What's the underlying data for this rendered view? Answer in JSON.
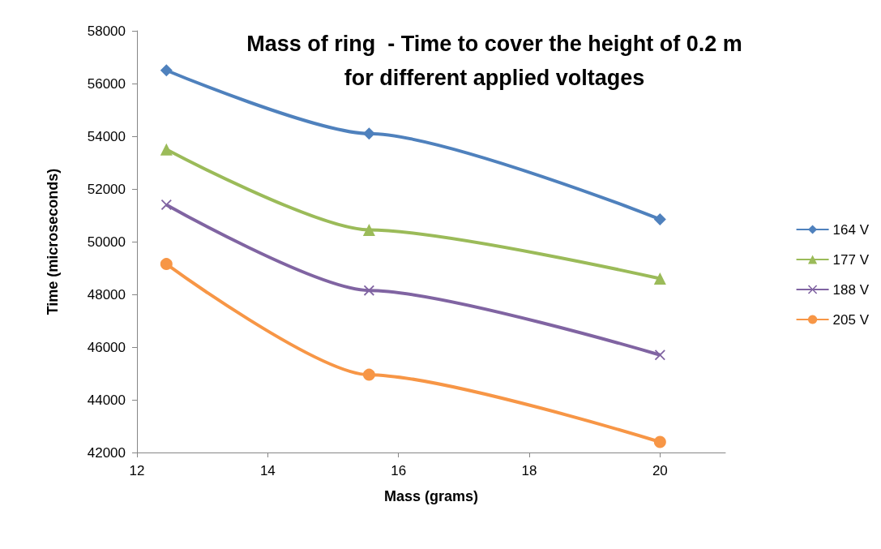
{
  "chart_data": {
    "type": "line",
    "title": "Mass of ring  - Time to cover the height of 0.2 m\nfor different applied voltages",
    "xlabel": "Mass (grams)",
    "ylabel": "Time (microseconds)",
    "x": [
      12.45,
      15.55,
      20.0
    ],
    "series": [
      {
        "name": "164 V",
        "color": "#4f81bd",
        "marker": "diamond",
        "values": [
          56500,
          54100,
          50850
        ]
      },
      {
        "name": "177 V",
        "color": "#9bbb59",
        "marker": "triangle",
        "values": [
          53500,
          50450,
          48600
        ]
      },
      {
        "name": "188 V",
        "color": "#8064a2",
        "marker": "cross",
        "values": [
          51400,
          48150,
          45700
        ]
      },
      {
        "name": "205 V",
        "color": "#f79646",
        "marker": "circle",
        "values": [
          49150,
          44950,
          42400
        ]
      }
    ],
    "xlim": [
      12,
      21
    ],
    "xticks": [
      12,
      14,
      16,
      18,
      20
    ],
    "ylim": [
      42000,
      58000
    ],
    "yticks": [
      42000,
      44000,
      46000,
      48000,
      50000,
      52000,
      54000,
      56000,
      58000
    ],
    "grid": false,
    "legend": "right"
  }
}
